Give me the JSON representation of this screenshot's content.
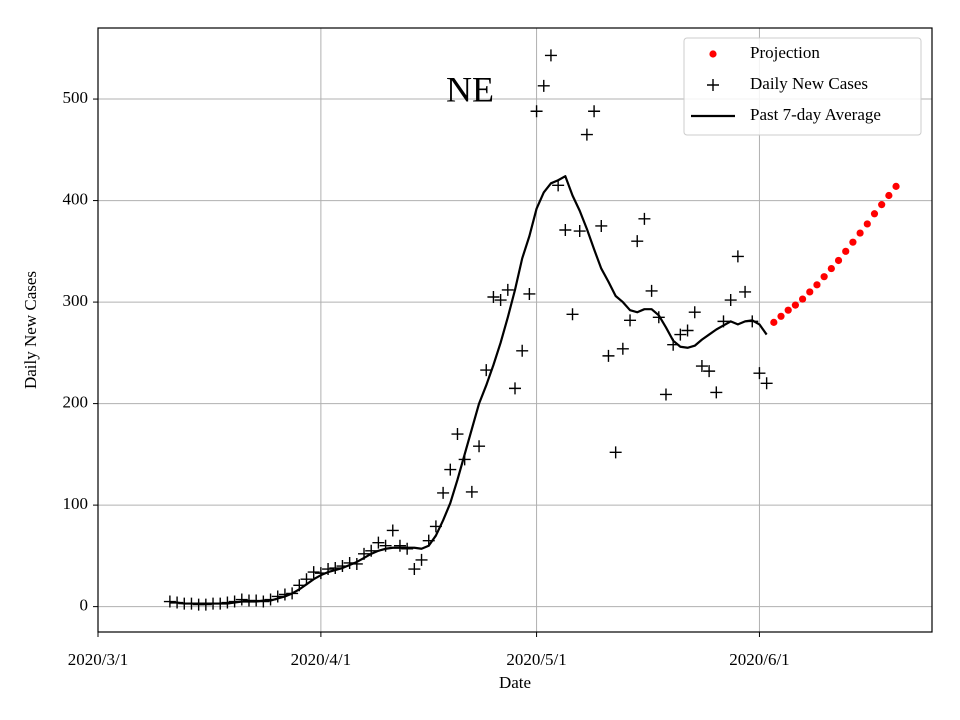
{
  "chart_data": {
    "type": "line",
    "annotation": "NE",
    "xlabel": "Date",
    "ylabel": "Daily New Cases",
    "grid": true,
    "legend": "upper right",
    "xlim": [
      "2020-03-01",
      "2020-06-25"
    ],
    "xticks": [
      {
        "value": "2020-03-01",
        "label": "2020/3/1"
      },
      {
        "value": "2020-04-01",
        "label": "2020/4/1"
      },
      {
        "value": "2020-05-01",
        "label": "2020/5/1"
      },
      {
        "value": "2020-06-01",
        "label": "2020/6/1"
      }
    ],
    "ylim": [
      -25,
      570
    ],
    "yticks": [
      0,
      100,
      200,
      300,
      400,
      500
    ],
    "x": [
      "2020-03-11",
      "2020-03-12",
      "2020-03-13",
      "2020-03-14",
      "2020-03-15",
      "2020-03-16",
      "2020-03-17",
      "2020-03-18",
      "2020-03-19",
      "2020-03-20",
      "2020-03-21",
      "2020-03-22",
      "2020-03-23",
      "2020-03-24",
      "2020-03-25",
      "2020-03-26",
      "2020-03-27",
      "2020-03-28",
      "2020-03-29",
      "2020-03-30",
      "2020-03-31",
      "2020-04-01",
      "2020-04-02",
      "2020-04-03",
      "2020-04-04",
      "2020-04-05",
      "2020-04-06",
      "2020-04-07",
      "2020-04-08",
      "2020-04-09",
      "2020-04-10",
      "2020-04-11",
      "2020-04-12",
      "2020-04-13",
      "2020-04-14",
      "2020-04-15",
      "2020-04-16",
      "2020-04-17",
      "2020-04-18",
      "2020-04-19",
      "2020-04-20",
      "2020-04-21",
      "2020-04-22",
      "2020-04-23",
      "2020-04-24",
      "2020-04-25",
      "2020-04-26",
      "2020-04-27",
      "2020-04-28",
      "2020-04-29",
      "2020-04-30",
      "2020-05-01",
      "2020-05-02",
      "2020-05-03",
      "2020-05-04",
      "2020-05-05",
      "2020-05-06",
      "2020-05-07",
      "2020-05-08",
      "2020-05-09",
      "2020-05-10",
      "2020-05-11",
      "2020-05-12",
      "2020-05-13",
      "2020-05-14",
      "2020-05-15",
      "2020-05-16",
      "2020-05-17",
      "2020-05-18",
      "2020-05-19",
      "2020-05-20",
      "2020-05-21",
      "2020-05-22",
      "2020-05-23",
      "2020-05-24",
      "2020-05-25",
      "2020-05-26",
      "2020-05-27",
      "2020-05-28",
      "2020-05-29",
      "2020-05-30",
      "2020-05-31",
      "2020-06-01",
      "2020-06-02"
    ],
    "series": [
      {
        "name": "Projection",
        "color": "#ff0000",
        "marker": "dot",
        "x": [
          "2020-06-03",
          "2020-06-04",
          "2020-06-05",
          "2020-06-06",
          "2020-06-07",
          "2020-06-08",
          "2020-06-09",
          "2020-06-10",
          "2020-06-11",
          "2020-06-12",
          "2020-06-13",
          "2020-06-14",
          "2020-06-15",
          "2020-06-16",
          "2020-06-17",
          "2020-06-18",
          "2020-06-19",
          "2020-06-20"
        ],
        "values": [
          280,
          286,
          292,
          297,
          303,
          310,
          317,
          325,
          333,
          341,
          350,
          359,
          368,
          377,
          387,
          396,
          405,
          414
        ]
      },
      {
        "name": "Daily New Cases",
        "color": "#000000",
        "marker": "plus",
        "values": [
          5,
          4,
          3,
          3,
          2,
          2,
          3,
          3,
          4,
          5,
          7,
          6,
          6,
          5,
          7,
          10,
          12,
          13,
          21,
          27,
          34,
          33,
          37,
          38,
          40,
          43,
          42,
          52,
          55,
          63,
          60,
          75,
          60,
          57,
          37,
          46,
          65,
          79,
          112,
          135,
          170,
          145,
          113,
          158,
          233,
          305,
          302,
          312,
          215,
          252,
          308,
          488,
          513,
          543,
          415,
          371,
          288,
          370,
          465,
          488,
          375,
          247,
          152,
          254,
          282,
          360,
          382,
          311,
          285,
          209,
          258,
          268,
          272,
          290,
          237,
          232,
          211,
          281,
          302,
          345,
          310,
          281,
          230,
          220
        ]
      },
      {
        "name": "Past 7-day Average",
        "color": "#000000",
        "marker": "line",
        "values": [
          4,
          4,
          3,
          3,
          3,
          3,
          3,
          3,
          3,
          4,
          5,
          5,
          5,
          6,
          6,
          8,
          10,
          13,
          17,
          22,
          27,
          31,
          34,
          36,
          38,
          41,
          44,
          48,
          52,
          55,
          57,
          58,
          58,
          58,
          58,
          57,
          60,
          70,
          85,
          102,
          125,
          150,
          175,
          200,
          218,
          238,
          260,
          285,
          312,
          343,
          365,
          392,
          408,
          417,
          420,
          424,
          405,
          390,
          372,
          352,
          333,
          320,
          306,
          300,
          292,
          290,
          293,
          293,
          287,
          275,
          262,
          256,
          255,
          257,
          263,
          268,
          273,
          277,
          281,
          278,
          281,
          282,
          278,
          268
        ]
      }
    ]
  }
}
